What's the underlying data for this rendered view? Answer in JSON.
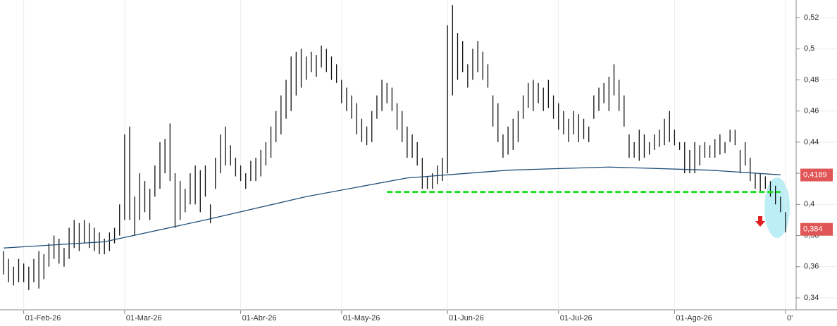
{
  "chart_data": {
    "type": "ohlc",
    "high": [
      0.37,
      0.365,
      0.36,
      0.365,
      0.362,
      0.36,
      0.365,
      0.37,
      0.368,
      0.375,
      0.38,
      0.378,
      0.372,
      0.385,
      0.39,
      0.388,
      0.39,
      0.388,
      0.385,
      0.382,
      0.378,
      0.382,
      0.385,
      0.4,
      0.445,
      0.45,
      0.405,
      0.42,
      0.415,
      0.41,
      0.425,
      0.44,
      0.442,
      0.452,
      0.42,
      0.415,
      0.41,
      0.42,
      0.425,
      0.422,
      0.425,
      0.4,
      0.43,
      0.445,
      0.45,
      0.438,
      0.43,
      0.425,
      0.42,
      0.428,
      0.43,
      0.435,
      0.44,
      0.45,
      0.46,
      0.47,
      0.48,
      0.495,
      0.498,
      0.5,
      0.495,
      0.498,
      0.496,
      0.502,
      0.5,
      0.495,
      0.49,
      0.48,
      0.475,
      0.47,
      0.465,
      0.455,
      0.45,
      0.46,
      0.47,
      0.48,
      0.478,
      0.475,
      0.465,
      0.46,
      0.45,
      0.445,
      0.44,
      0.43,
      0.418,
      0.42,
      0.425,
      0.43,
      0.515,
      0.528,
      0.51,
      0.505,
      0.49,
      0.5,
      0.505,
      0.498,
      0.49,
      0.47,
      0.465,
      0.445,
      0.45,
      0.455,
      0.46,
      0.47,
      0.478,
      0.48,
      0.478,
      0.475,
      0.48,
      0.47,
      0.465,
      0.46,
      0.455,
      0.46,
      0.458,
      0.455,
      0.45,
      0.47,
      0.475,
      0.478,
      0.482,
      0.49,
      0.48,
      0.47,
      0.445,
      0.44,
      0.448,
      0.445,
      0.44,
      0.445,
      0.448,
      0.455,
      0.46,
      0.448,
      0.44,
      0.44,
      0.435,
      0.44,
      0.438,
      0.44,
      0.438,
      0.442,
      0.445,
      0.44,
      0.448,
      0.448,
      0.435,
      0.44,
      0.43,
      0.42,
      0.42,
      0.418,
      0.415,
      0.412,
      0.405,
      0.395
    ],
    "low": [
      0.355,
      0.35,
      0.348,
      0.35,
      0.35,
      0.345,
      0.35,
      0.346,
      0.352,
      0.36,
      0.365,
      0.362,
      0.36,
      0.365,
      0.372,
      0.37,
      0.375,
      0.372,
      0.37,
      0.368,
      0.368,
      0.37,
      0.375,
      0.38,
      0.39,
      0.39,
      0.38,
      0.39,
      0.395,
      0.39,
      0.405,
      0.41,
      0.42,
      0.415,
      0.385,
      0.39,
      0.395,
      0.4,
      0.4,
      0.395,
      0.405,
      0.388,
      0.41,
      0.42,
      0.425,
      0.425,
      0.418,
      0.415,
      0.41,
      0.415,
      0.415,
      0.418,
      0.425,
      0.43,
      0.44,
      0.445,
      0.455,
      0.46,
      0.47,
      0.475,
      0.48,
      0.485,
      0.482,
      0.488,
      0.485,
      0.48,
      0.478,
      0.465,
      0.46,
      0.455,
      0.445,
      0.44,
      0.438,
      0.44,
      0.455,
      0.46,
      0.465,
      0.46,
      0.448,
      0.44,
      0.43,
      0.43,
      0.425,
      0.41,
      0.41,
      0.41,
      0.413,
      0.415,
      0.42,
      0.47,
      0.48,
      0.485,
      0.475,
      0.48,
      0.485,
      0.48,
      0.475,
      0.45,
      0.44,
      0.43,
      0.432,
      0.435,
      0.44,
      0.455,
      0.462,
      0.46,
      0.465,
      0.46,
      0.462,
      0.455,
      0.448,
      0.445,
      0.44,
      0.445,
      0.44,
      0.442,
      0.44,
      0.455,
      0.46,
      0.465,
      0.46,
      0.47,
      0.46,
      0.45,
      0.43,
      0.43,
      0.428,
      0.43,
      0.432,
      0.435,
      0.437,
      0.438,
      0.44,
      0.438,
      0.435,
      0.42,
      0.42,
      0.42,
      0.425,
      0.43,
      0.43,
      0.43,
      0.432,
      0.433,
      0.44,
      0.438,
      0.42,
      0.425,
      0.415,
      0.41,
      0.408,
      0.41,
      0.405,
      0.4,
      0.395,
      0.382
    ],
    "ma": {
      "x": [
        0,
        20,
        40,
        60,
        80,
        100,
        120,
        140,
        154
      ],
      "values": [
        0.372,
        0.376,
        0.39,
        0.405,
        0.417,
        0.422,
        0.424,
        0.422,
        0.419
      ]
    },
    "support": {
      "x": [
        76,
        154
      ],
      "values": [
        0.408,
        0.408
      ],
      "color": "#22dd22"
    },
    "bar_color": "#111111",
    "ma_color": "#1f4e79",
    "annotations": [
      {
        "label": "0,4189",
        "value": 0.4189
      },
      {
        "label": "0,384",
        "value": 0.384
      }
    ],
    "xlim": [
      -0.7,
      157.1
    ],
    "ylim": [
      0.3323,
      0.5313
    ],
    "xticks": [
      {
        "value": 4,
        "label": "01-Feb-26"
      },
      {
        "value": 24,
        "label": "01-Mar-26"
      },
      {
        "value": 47,
        "label": "01-Abr-26"
      },
      {
        "value": 67,
        "label": "01-May-26"
      },
      {
        "value": 88,
        "label": "01-Jun-26"
      },
      {
        "value": 110,
        "label": "01-Jul-26"
      },
      {
        "value": 133,
        "label": "01-Ago-26"
      },
      {
        "value": 155,
        "label": "0'"
      }
    ],
    "yticks": [
      {
        "value": 0.34,
        "label": "0,34"
      },
      {
        "value": 0.36,
        "label": "0,36"
      },
      {
        "value": 0.38,
        "label": "0,38"
      },
      {
        "value": 0.4,
        "label": "0,4"
      },
      {
        "value": 0.42,
        "label": "0,42"
      },
      {
        "value": 0.44,
        "label": "0,44"
      },
      {
        "value": 0.46,
        "label": "0,46"
      },
      {
        "value": 0.48,
        "label": "0,48"
      },
      {
        "value": 0.5,
        "label": "0,5"
      },
      {
        "value": 0.52,
        "label": "0,52"
      }
    ],
    "grid": true
  }
}
